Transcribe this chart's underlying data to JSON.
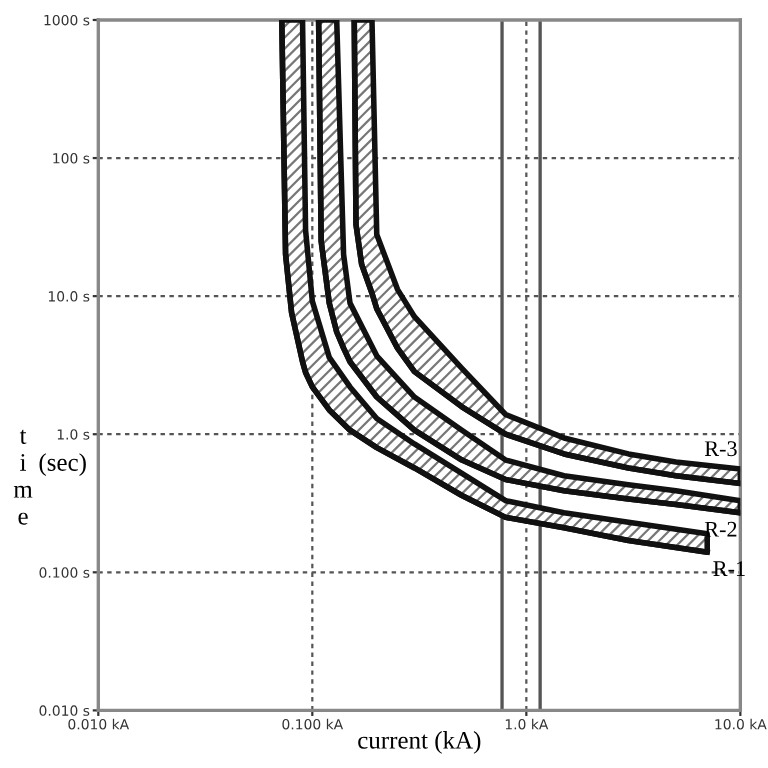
{
  "chart_data": {
    "type": "line",
    "xlabel": "current (kA)",
    "ylabel": "time (sec)",
    "log": "xy",
    "grid": true,
    "legend": false,
    "line_style": "solid",
    "marker": "none",
    "xlim": [
      0.01,
      10
    ],
    "ylim": [
      0.01,
      1000
    ],
    "xticks": [
      {
        "value": 0.01,
        "label": "0.010 kA"
      },
      {
        "value": 0.1,
        "label": "0.100 kA"
      },
      {
        "value": 1,
        "label": "1.0 kA"
      },
      {
        "value": 10,
        "label": "10.0 kA"
      }
    ],
    "yticks": [
      {
        "value": 0.01,
        "label": "0.010 s"
      },
      {
        "value": 0.1,
        "label": "0.100 s"
      },
      {
        "value": 1,
        "label": "1.0 s"
      },
      {
        "value": 10,
        "label": "10.0 s"
      },
      {
        "value": 100,
        "label": "100 s"
      },
      {
        "value": 1000,
        "label": "1000 s"
      }
    ],
    "ref_lines": [
      {
        "axis": "x",
        "value": 0.77,
        "color": "#555555",
        "line_style": "solid"
      },
      {
        "axis": "x",
        "value": 1.16,
        "color": "#555555",
        "line_style": "solid"
      }
    ],
    "series": [
      {
        "name": "R-1",
        "color": "#111111",
        "x": [
          0.072,
          0.075,
          0.08,
          0.09,
          0.093,
          0.1,
          0.12,
          0.15,
          0.2,
          0.3,
          0.5,
          0.8,
          1.5,
          3,
          7
        ],
        "values": [
          1000,
          20,
          7.6,
          3.35,
          2.8,
          2.2,
          1.5,
          1.07,
          0.8,
          0.57,
          0.36,
          0.25,
          0.21,
          0.17,
          0.14
        ],
        "lower": [
          1000,
          20,
          7.6,
          3.35,
          2.8,
          2.2,
          1.5,
          1.07,
          0.8,
          0.57,
          0.36,
          0.25,
          0.21,
          0.17,
          0.14
        ],
        "upper": [
          1000,
          1000,
          1000,
          1000,
          30,
          9.2,
          3.6,
          2.2,
          1.3,
          0.85,
          0.52,
          0.33,
          0.27,
          0.23,
          0.19
        ]
      },
      {
        "name": "R-2",
        "color": "#111111",
        "x": [
          0.107,
          0.11,
          0.12,
          0.13,
          0.14,
          0.15,
          0.2,
          0.3,
          0.5,
          0.8,
          1.5,
          3,
          5,
          10
        ],
        "values": [
          1000,
          25,
          8.9,
          5.5,
          4.2,
          3.35,
          1.86,
          1.07,
          0.65,
          0.47,
          0.39,
          0.34,
          0.31,
          0.27
        ],
        "lower": [
          1000,
          25,
          8.9,
          5.5,
          4.2,
          3.35,
          1.86,
          1.07,
          0.65,
          0.47,
          0.39,
          0.34,
          0.31,
          0.27
        ],
        "upper": [
          1000,
          1000,
          1000,
          1000,
          20,
          8.9,
          3.7,
          1.86,
          1.07,
          0.65,
          0.5,
          0.43,
          0.39,
          0.33
        ]
      },
      {
        "name": "R-3",
        "color": "#111111",
        "x": [
          0.157,
          0.16,
          0.17,
          0.19,
          0.2,
          0.25,
          0.3,
          0.5,
          0.8,
          1.5,
          3,
          5,
          10
        ],
        "values": [
          1000,
          33,
          17,
          10.5,
          8.1,
          4.2,
          2.84,
          1.58,
          1.0,
          0.72,
          0.57,
          0.5,
          0.44
        ],
        "lower": [
          1000,
          33,
          17,
          10.5,
          8.1,
          4.2,
          2.84,
          1.58,
          1.0,
          0.72,
          0.57,
          0.5,
          0.44
        ],
        "upper": [
          1000,
          1000,
          1000,
          1000,
          28,
          11.2,
          7.1,
          3.0,
          1.39,
          0.94,
          0.72,
          0.63,
          0.56
        ]
      }
    ]
  }
}
